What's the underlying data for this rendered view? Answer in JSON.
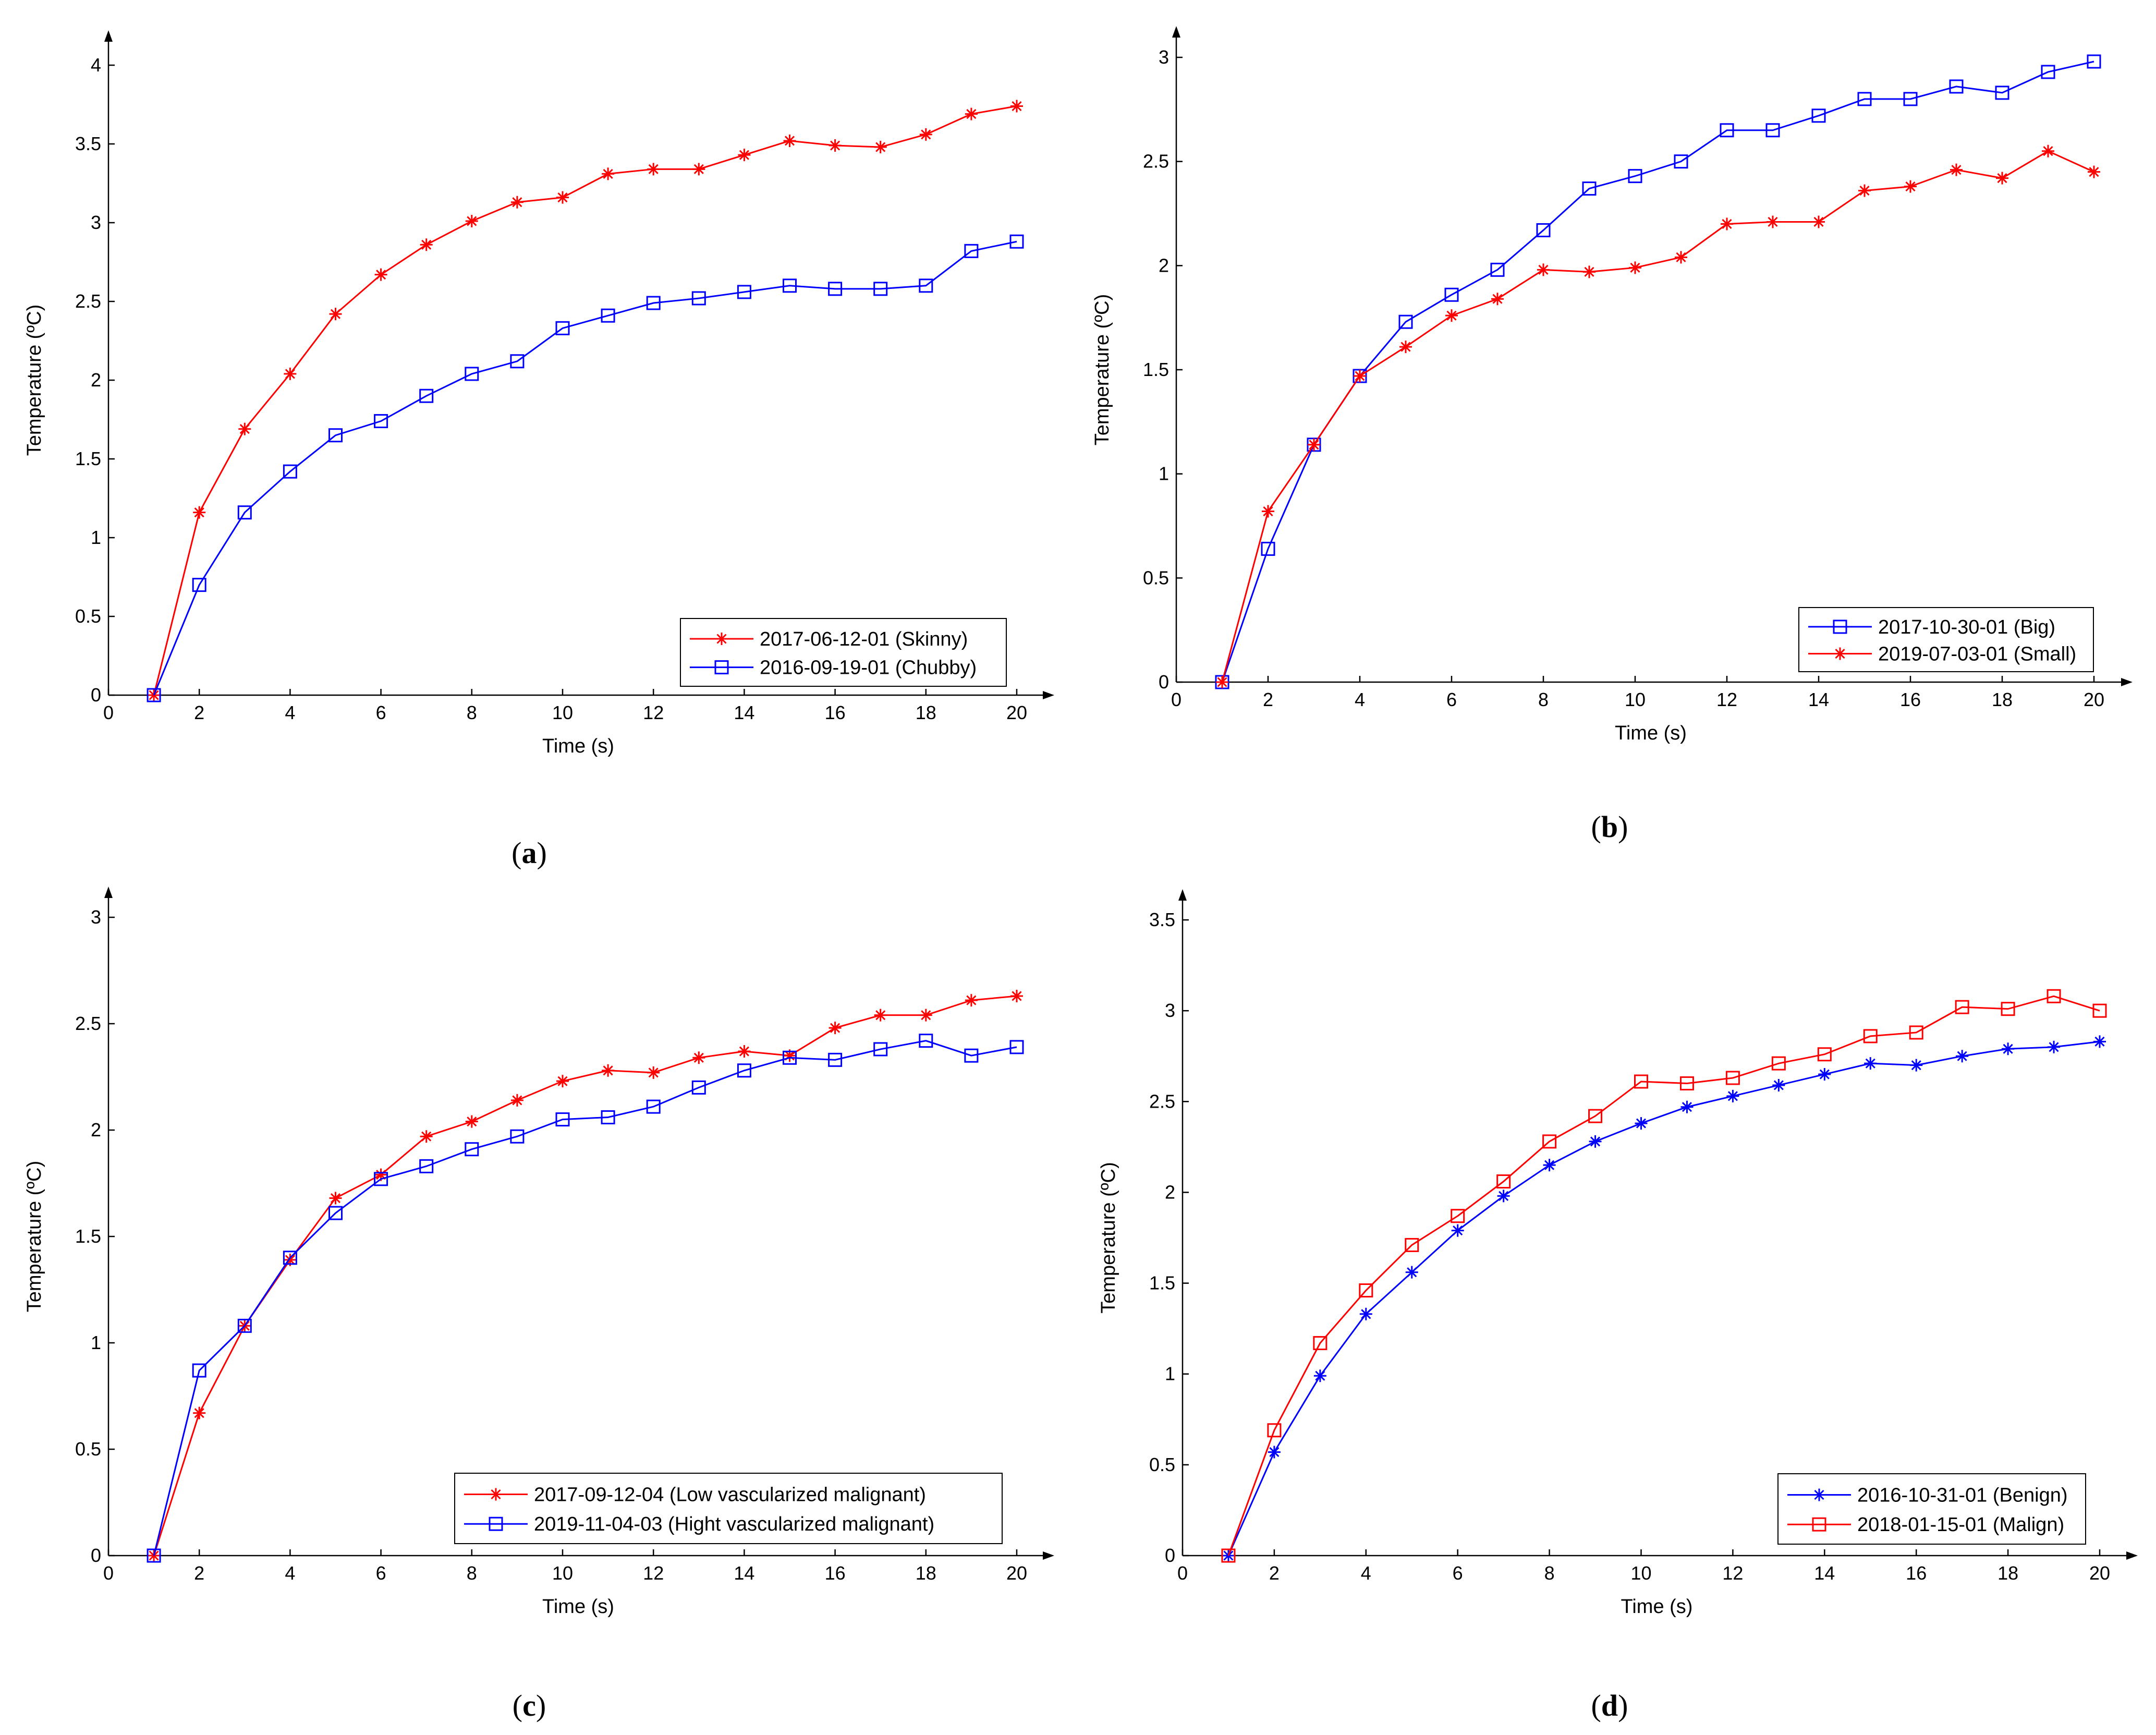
{
  "chart_data": [
    {
      "type": "line",
      "panel": "a",
      "panel_label_open": "(",
      "panel_label_letter": "a",
      "panel_label_close": ")",
      "xlabel": "Time (s)",
      "ylabel": "Temperature (ºC)",
      "xlim": [
        0,
        20
      ],
      "ylim": [
        0,
        4
      ],
      "xticks": [
        0,
        2,
        4,
        6,
        8,
        10,
        12,
        14,
        16,
        18,
        20
      ],
      "yticks": [
        0,
        0.5,
        1,
        1.5,
        2,
        2.5,
        3,
        3.5,
        4
      ],
      "legend_position": "bottom-right",
      "x": [
        1,
        2,
        3,
        4,
        5,
        6,
        7,
        8,
        9,
        10,
        11,
        12,
        13,
        14,
        15,
        16,
        17,
        18,
        19,
        20
      ],
      "series": [
        {
          "name": "2017-06-12-01 (Skinny)",
          "color": "#ff0000",
          "marker": "star",
          "values": [
            0,
            1.16,
            1.69,
            2.04,
            2.42,
            2.67,
            2.86,
            3.01,
            3.13,
            3.16,
            3.31,
            3.34,
            3.34,
            3.43,
            3.52,
            3.49,
            3.48,
            3.56,
            3.69,
            3.74
          ]
        },
        {
          "name": "2016-09-19-01 (Chubby)",
          "color": "#0000ff",
          "marker": "square",
          "values": [
            0,
            0.7,
            1.16,
            1.42,
            1.65,
            1.74,
            1.9,
            2.04,
            2.12,
            2.33,
            2.41,
            2.49,
            2.52,
            2.56,
            2.6,
            2.58,
            2.58,
            2.6,
            2.82,
            2.88
          ]
        }
      ]
    },
    {
      "type": "line",
      "panel": "b",
      "panel_label_open": "(",
      "panel_label_letter": "b",
      "panel_label_close": ")",
      "xlabel": "Time (s)",
      "ylabel": "Temperature (ºC)",
      "xlim": [
        0,
        20
      ],
      "ylim": [
        0,
        3
      ],
      "xticks": [
        0,
        2,
        4,
        6,
        8,
        10,
        12,
        14,
        16,
        18,
        20
      ],
      "yticks": [
        0,
        0.5,
        1,
        1.5,
        2,
        2.5,
        3
      ],
      "legend_position": "bottom-right",
      "x": [
        1,
        2,
        3,
        4,
        5,
        6,
        7,
        8,
        9,
        10,
        11,
        12,
        13,
        14,
        15,
        16,
        17,
        18,
        19,
        20
      ],
      "series": [
        {
          "name": "2017-10-30-01 (Big)",
          "color": "#0000ff",
          "marker": "square",
          "values": [
            0,
            0.64,
            1.14,
            1.47,
            1.73,
            1.86,
            1.98,
            2.17,
            2.37,
            2.43,
            2.5,
            2.65,
            2.65,
            2.72,
            2.8,
            2.8,
            2.86,
            2.83,
            2.93,
            2.98
          ]
        },
        {
          "name": "2019-07-03-01 (Small)",
          "color": "#ff0000",
          "marker": "star",
          "values": [
            0,
            0.82,
            1.14,
            1.47,
            1.61,
            1.76,
            1.84,
            1.98,
            1.97,
            1.99,
            2.04,
            2.2,
            2.21,
            2.21,
            2.36,
            2.38,
            2.46,
            2.42,
            2.55,
            2.45
          ]
        }
      ]
    },
    {
      "type": "line",
      "panel": "c",
      "panel_label_open": "(",
      "panel_label_letter": "c",
      "panel_label_close": ")",
      "xlabel": "Time (s)",
      "ylabel": "Temperature (ºC)",
      "xlim": [
        0,
        20
      ],
      "ylim": [
        0,
        3
      ],
      "xticks": [
        0,
        2,
        4,
        6,
        8,
        10,
        12,
        14,
        16,
        18,
        20
      ],
      "yticks": [
        0,
        0.5,
        1,
        1.5,
        2,
        2.5,
        3
      ],
      "legend_position": "bottom-right",
      "x": [
        1,
        2,
        3,
        4,
        5,
        6,
        7,
        8,
        9,
        10,
        11,
        12,
        13,
        14,
        15,
        16,
        17,
        18,
        19,
        20
      ],
      "series": [
        {
          "name": "2017-09-12-04 (Low vascularized malignant)",
          "color": "#ff0000",
          "marker": "star",
          "values": [
            0,
            0.67,
            1.08,
            1.39,
            1.68,
            1.79,
            1.97,
            2.04,
            2.14,
            2.23,
            2.28,
            2.27,
            2.34,
            2.37,
            2.35,
            2.48,
            2.54,
            2.54,
            2.61,
            2.63
          ]
        },
        {
          "name": "2019-11-04-03 (Hight vascularized malignant)",
          "color": "#0000ff",
          "marker": "square",
          "values": [
            0,
            0.87,
            1.08,
            1.4,
            1.61,
            1.77,
            1.83,
            1.91,
            1.97,
            2.05,
            2.06,
            2.11,
            2.2,
            2.28,
            2.34,
            2.33,
            2.38,
            2.42,
            2.35,
            2.39
          ]
        }
      ]
    },
    {
      "type": "line",
      "panel": "d",
      "panel_label_open": "(",
      "panel_label_letter": "d",
      "panel_label_close": ")",
      "xlabel": "Time (s)",
      "ylabel": "Temperature (ºC)",
      "xlim": [
        0,
        20
      ],
      "ylim": [
        0,
        3.5
      ],
      "xticks": [
        0,
        2,
        4,
        6,
        8,
        10,
        12,
        14,
        16,
        18,
        20
      ],
      "yticks": [
        0,
        0.5,
        1,
        1.5,
        2,
        2.5,
        3,
        3.5
      ],
      "legend_position": "bottom-right",
      "x": [
        1,
        2,
        3,
        4,
        5,
        6,
        7,
        8,
        9,
        10,
        11,
        12,
        13,
        14,
        15,
        16,
        17,
        18,
        19,
        20
      ],
      "series": [
        {
          "name": "2016-10-31-01 (Benign)",
          "color": "#0000ff",
          "marker": "star",
          "values": [
            0,
            0.57,
            0.99,
            1.33,
            1.56,
            1.79,
            1.98,
            2.15,
            2.28,
            2.38,
            2.47,
            2.53,
            2.59,
            2.65,
            2.71,
            2.7,
            2.75,
            2.79,
            2.8,
            2.83
          ]
        },
        {
          "name": "2018-01-15-01 (Malign)",
          "color": "#ff0000",
          "marker": "square",
          "values": [
            0,
            0.69,
            1.17,
            1.46,
            1.71,
            1.87,
            2.06,
            2.28,
            2.42,
            2.61,
            2.6,
            2.63,
            2.71,
            2.76,
            2.86,
            2.88,
            3.02,
            3.01,
            3.08,
            3.0
          ]
        }
      ]
    }
  ]
}
